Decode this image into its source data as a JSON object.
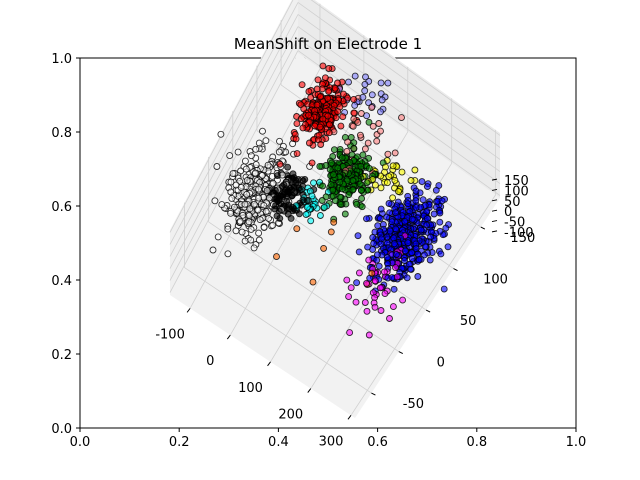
{
  "chart_data": {
    "type": "scatter",
    "title": "MeanShift on Electrode 1",
    "outer_axes": {
      "x_ticks": [
        "0.0",
        "0.2",
        "0.4",
        "0.6",
        "0.8",
        "1.0"
      ],
      "y_ticks": [
        "0.0",
        "0.2",
        "0.4",
        "0.6",
        "0.8",
        "1.0"
      ],
      "xlim": [
        0,
        1
      ],
      "ylim": [
        0,
        1
      ]
    },
    "axis3d": {
      "x_ticks": [
        "-100",
        "0",
        "100",
        "200",
        "300"
      ],
      "y_ticks": [
        "-50",
        "0",
        "50",
        "100",
        "150"
      ],
      "z_ticks": [
        "-100",
        "-50",
        "0",
        "50",
        "100",
        "150"
      ],
      "xlim": [
        -150,
        310
      ],
      "ylim": [
        -80,
        185
      ],
      "zlim": [
        -110,
        160
      ]
    },
    "series": [
      {
        "color": "#ff0000",
        "center": [
          -20,
          120,
          60
        ],
        "spread": [
          18,
          14,
          20
        ],
        "count": 260
      },
      {
        "color": "#ffffff",
        "center": [
          -70,
          30,
          0
        ],
        "spread": [
          32,
          22,
          25
        ],
        "count": 300
      },
      {
        "color": "#008000",
        "center": [
          70,
          90,
          10
        ],
        "spread": [
          22,
          16,
          18
        ],
        "count": 220
      },
      {
        "color": "#0000ff",
        "center": [
          220,
          80,
          -20
        ],
        "spread": [
          28,
          22,
          22
        ],
        "count": 420
      },
      {
        "color": "#000000",
        "center": [
          -5,
          40,
          20
        ],
        "spread": [
          16,
          12,
          15
        ],
        "count": 90
      },
      {
        "color": "#00ffff",
        "center": [
          40,
          50,
          10
        ],
        "spread": [
          14,
          10,
          12
        ],
        "count": 30
      },
      {
        "color": "#ff00ff",
        "center": [
          230,
          30,
          0
        ],
        "spread": [
          30,
          22,
          20
        ],
        "count": 45
      },
      {
        "color": "#ffff00",
        "center": [
          150,
          110,
          10
        ],
        "spread": [
          22,
          12,
          12
        ],
        "count": 35
      },
      {
        "color": "#8080ff",
        "center": [
          40,
          160,
          40
        ],
        "spread": [
          25,
          12,
          20
        ],
        "count": 25
      },
      {
        "color": "#ff8080",
        "center": [
          60,
          120,
          30
        ],
        "spread": [
          35,
          20,
          20
        ],
        "count": 30
      },
      {
        "color": "#ff6600",
        "center": [
          150,
          10,
          0
        ],
        "spread": [
          60,
          30,
          20
        ],
        "count": 8
      }
    ]
  }
}
